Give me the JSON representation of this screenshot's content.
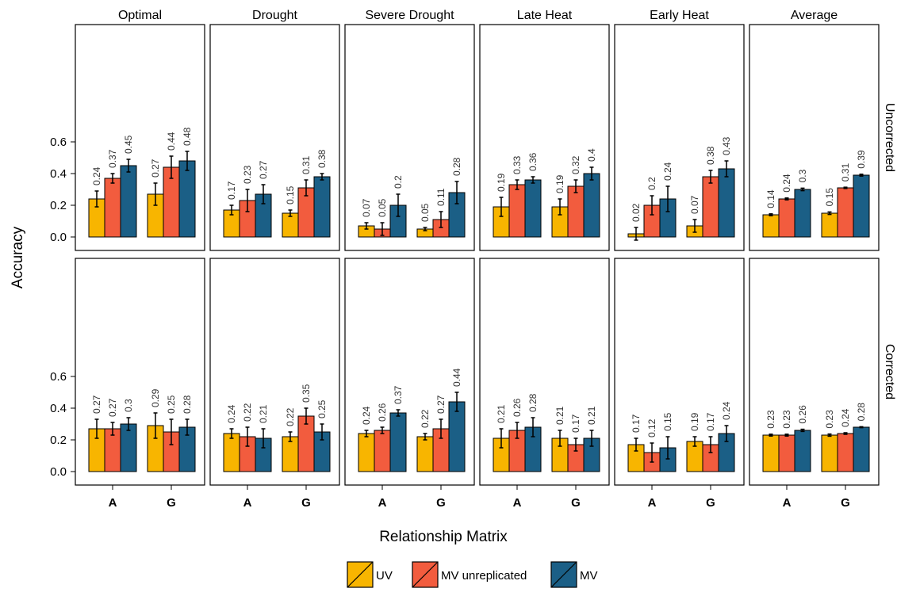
{
  "chart_data": {
    "type": "bar",
    "xlabel": "Relationship Matrix",
    "ylabel": "Accuracy",
    "ylim": [
      -0.05,
      0.65
    ],
    "yticks": [
      0.0,
      0.2,
      0.4,
      0.6
    ],
    "ytick_labels": [
      "0.0",
      "0.2",
      "0.4",
      "0.6"
    ],
    "categories": [
      "A",
      "G"
    ],
    "columns": [
      "Optimal",
      "Drought",
      "Severe Drought",
      "Late Heat",
      "Early Heat",
      "Average"
    ],
    "rows": [
      "Uncorrected",
      "Corrected"
    ],
    "series": [
      {
        "name": "UV",
        "color": "#F8B500"
      },
      {
        "name": "MV unreplicated",
        "color": "#F25C3E"
      },
      {
        "name": "MV",
        "color": "#1B5F86"
      }
    ],
    "panels": [
      {
        "row": "Uncorrected",
        "column": "Optimal",
        "values": [
          [
            0.24,
            0.37,
            0.45
          ],
          [
            0.27,
            0.44,
            0.48
          ]
        ],
        "labels": [
          [
            "0.24",
            "0.37",
            "0.45"
          ],
          [
            "0.27",
            "0.44",
            "0.48"
          ]
        ],
        "errors": [
          [
            0.05,
            0.03,
            0.04
          ],
          [
            0.07,
            0.07,
            0.06
          ]
        ]
      },
      {
        "row": "Uncorrected",
        "column": "Drought",
        "values": [
          [
            0.17,
            0.23,
            0.27
          ],
          [
            0.15,
            0.31,
            0.38
          ]
        ],
        "labels": [
          [
            "0.17",
            "0.23",
            "0.27"
          ],
          [
            "0.15",
            "0.31",
            "0.38"
          ]
        ],
        "errors": [
          [
            0.03,
            0.07,
            0.06
          ],
          [
            0.02,
            0.05,
            0.02
          ]
        ]
      },
      {
        "row": "Uncorrected",
        "column": "Severe Drought",
        "values": [
          [
            0.07,
            0.05,
            0.2
          ],
          [
            0.05,
            0.11,
            0.28
          ]
        ],
        "labels": [
          [
            "0.07",
            "0.05",
            "0.2"
          ],
          [
            "0.05",
            "0.11",
            "0.28"
          ]
        ],
        "errors": [
          [
            0.02,
            0.04,
            0.07
          ],
          [
            0.01,
            0.05,
            0.07
          ]
        ]
      },
      {
        "row": "Uncorrected",
        "column": "Late Heat",
        "values": [
          [
            0.19,
            0.33,
            0.36
          ],
          [
            0.19,
            0.32,
            0.4
          ]
        ],
        "labels": [
          [
            "0.19",
            "0.33",
            "0.36"
          ],
          [
            "0.19",
            "0.32",
            "0.4"
          ]
        ],
        "errors": [
          [
            0.06,
            0.03,
            0.02
          ],
          [
            0.05,
            0.04,
            0.04
          ]
        ]
      },
      {
        "row": "Uncorrected",
        "column": "Early Heat",
        "values": [
          [
            0.02,
            0.2,
            0.24
          ],
          [
            0.07,
            0.38,
            0.43
          ]
        ],
        "labels": [
          [
            "0.02",
            "0.2",
            "0.24"
          ],
          [
            "0.07",
            "0.38",
            "0.43"
          ]
        ],
        "errors": [
          [
            0.04,
            0.06,
            0.08
          ],
          [
            0.04,
            0.04,
            0.05
          ]
        ]
      },
      {
        "row": "Uncorrected",
        "column": "Average",
        "values": [
          [
            0.14,
            0.24,
            0.3
          ],
          [
            0.15,
            0.31,
            0.39
          ]
        ],
        "labels": [
          [
            "0.14",
            "0.24",
            "0.3"
          ],
          [
            "0.15",
            "0.31",
            "0.39"
          ]
        ],
        "errors": [
          [
            0.006,
            0.006,
            0.008
          ],
          [
            0.008,
            0.004,
            0.006
          ]
        ]
      },
      {
        "row": "Corrected",
        "column": "Optimal",
        "values": [
          [
            0.27,
            0.27,
            0.3
          ],
          [
            0.29,
            0.25,
            0.28
          ]
        ],
        "labels": [
          [
            "0.27",
            "0.27",
            "0.3"
          ],
          [
            "0.29",
            "0.25",
            "0.28"
          ]
        ],
        "errors": [
          [
            0.06,
            0.04,
            0.04
          ],
          [
            0.08,
            0.08,
            0.05
          ]
        ]
      },
      {
        "row": "Corrected",
        "column": "Drought",
        "values": [
          [
            0.24,
            0.22,
            0.21
          ],
          [
            0.22,
            0.35,
            0.25
          ]
        ],
        "labels": [
          [
            "0.24",
            "0.22",
            "0.21"
          ],
          [
            "0.22",
            "0.35",
            "0.25"
          ]
        ],
        "errors": [
          [
            0.03,
            0.06,
            0.06
          ],
          [
            0.03,
            0.05,
            0.05
          ]
        ]
      },
      {
        "row": "Corrected",
        "column": "Severe Drought",
        "values": [
          [
            0.24,
            0.26,
            0.37
          ],
          [
            0.22,
            0.27,
            0.44
          ]
        ],
        "labels": [
          [
            "0.24",
            "0.26",
            "0.37"
          ],
          [
            "0.22",
            "0.27",
            "0.44"
          ]
        ],
        "errors": [
          [
            0.02,
            0.02,
            0.02
          ],
          [
            0.02,
            0.06,
            0.06
          ]
        ]
      },
      {
        "row": "Corrected",
        "column": "Late Heat",
        "values": [
          [
            0.21,
            0.26,
            0.28
          ],
          [
            0.21,
            0.17,
            0.21
          ]
        ],
        "labels": [
          [
            "0.21",
            "0.26",
            "0.28"
          ],
          [
            "0.21",
            "0.17",
            "0.21"
          ]
        ],
        "errors": [
          [
            0.06,
            0.05,
            0.06
          ],
          [
            0.05,
            0.04,
            0.05
          ]
        ]
      },
      {
        "row": "Corrected",
        "column": "Early Heat",
        "values": [
          [
            0.17,
            0.12,
            0.15
          ],
          [
            0.19,
            0.17,
            0.24
          ]
        ],
        "labels": [
          [
            "0.17",
            "0.12",
            "0.15"
          ],
          [
            "0.19",
            "0.17",
            "0.24"
          ]
        ],
        "errors": [
          [
            0.04,
            0.06,
            0.07
          ],
          [
            0.03,
            0.05,
            0.05
          ]
        ]
      },
      {
        "row": "Corrected",
        "column": "Average",
        "values": [
          [
            0.23,
            0.23,
            0.26
          ],
          [
            0.23,
            0.24,
            0.28
          ]
        ],
        "labels": [
          [
            "0.23",
            "0.23",
            "0.26"
          ],
          [
            "0.23",
            "0.24",
            "0.28"
          ]
        ],
        "errors": [
          [
            0.006,
            0.006,
            0.007
          ],
          [
            0.007,
            0.005,
            0.003
          ]
        ]
      }
    ],
    "legend": {
      "placement": "bottom",
      "entries": [
        "UV",
        "MV unreplicated",
        "MV"
      ]
    },
    "grid": false
  }
}
